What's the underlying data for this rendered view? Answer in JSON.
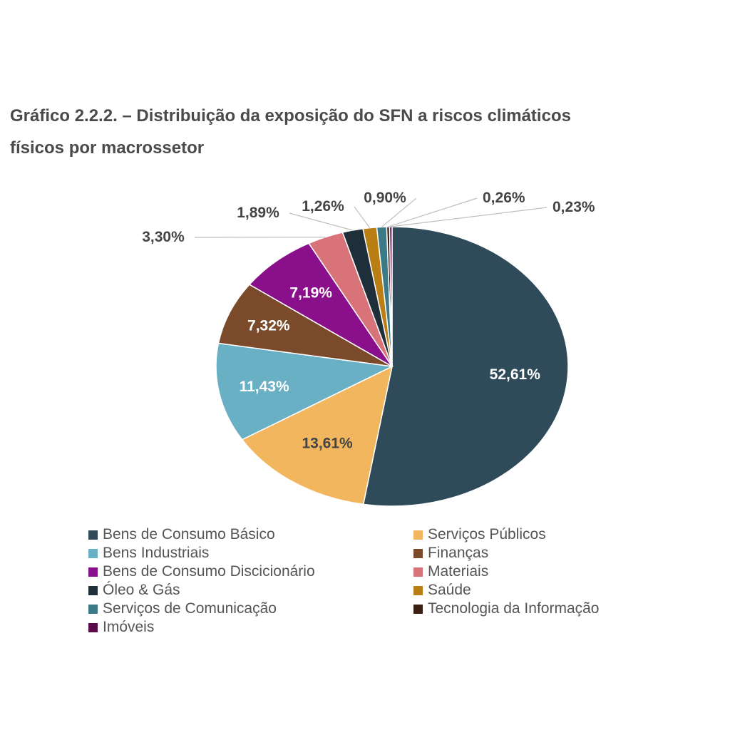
{
  "chart_data": {
    "type": "pie",
    "title": "Gráfico 2.2.2. – Distribuição da exposição do SFN a riscos climáticos físicos por macrossetor",
    "title_lines": [
      "Gráfico 2.2.2. – Distribuição da exposição do SFN a riscos climáticos",
      "físicos por macrossetor"
    ],
    "legend_position": "bottom",
    "slices": [
      {
        "name": "Bens de Consumo Básico",
        "value": 52.61,
        "label": "52,61%",
        "color": "#2f4b5a",
        "label_color": "#ffffff"
      },
      {
        "name": "Serviços Públicos",
        "value": 13.61,
        "label": "13,61%",
        "color": "#f2b65e",
        "label_color": "#444444"
      },
      {
        "name": "Bens Industriais",
        "value": 11.43,
        "label": "11,43%",
        "color": "#6ab0c4",
        "label_color": "#ffffff"
      },
      {
        "name": "Finanças",
        "value": 7.32,
        "label": "7,32%",
        "color": "#7a4a2b",
        "label_color": "#ffffff"
      },
      {
        "name": "Bens de Consumo Discicionário",
        "value": 7.19,
        "label": "7,19%",
        "color": "#8a0f8a",
        "label_color": "#ffffff"
      },
      {
        "name": "Materiais",
        "value": 3.3,
        "label": "3,30%",
        "color": "#d9737a",
        "label_color": "#444444"
      },
      {
        "name": "Óleo & Gás",
        "value": 1.89,
        "label": "1,89%",
        "color": "#1f2f3a",
        "label_color": "#444444"
      },
      {
        "name": "Saúde",
        "value": 1.26,
        "label": "1,26%",
        "color": "#b97e14",
        "label_color": "#444444"
      },
      {
        "name": "Serviços de Comunicação",
        "value": 0.9,
        "label": "0,90%",
        "color": "#3d7a88",
        "label_color": "#444444"
      },
      {
        "name": "Tecnologia da Informação",
        "value": 0.26,
        "label": "0,26%",
        "color": "#3a2012",
        "label_color": "#444444"
      },
      {
        "name": "Imóveis",
        "value": 0.23,
        "label": "0,23%",
        "color": "#5a0a4a",
        "label_color": "#444444"
      }
    ],
    "legend_order": [
      "Bens de Consumo Básico",
      "Serviços Públicos",
      "Bens Industriais",
      "Finanças",
      "Bens de Consumo Discicionário",
      "Materiais",
      "Óleo & Gás",
      "Saúde",
      "Serviços de Comunicação",
      "Tecnologia da Informação",
      "Imóveis"
    ]
  }
}
